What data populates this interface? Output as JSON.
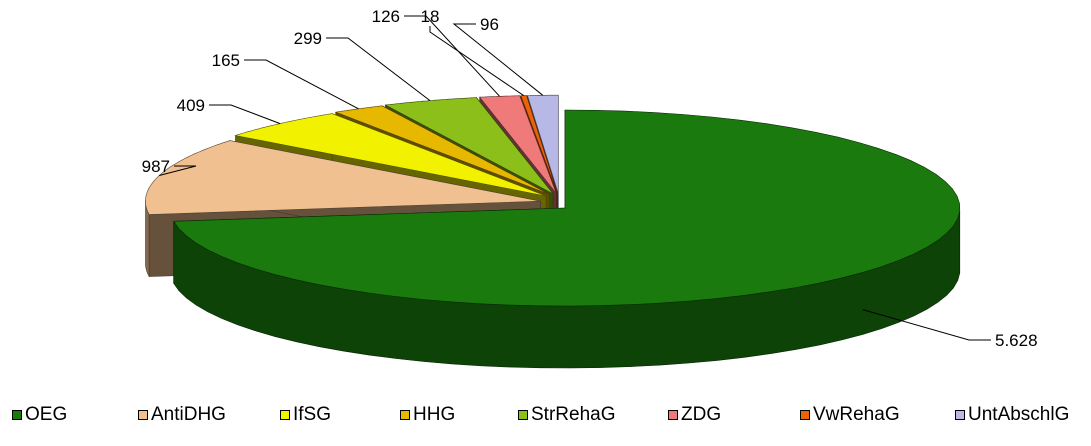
{
  "chart_data": {
    "type": "pie",
    "style": "3d-exploded",
    "title": "",
    "legend_position": "bottom",
    "slices": [
      {
        "name": "OEG",
        "value": 5628,
        "label": "5.628",
        "color": "#1a7a0e"
      },
      {
        "name": "AntiDHG",
        "value": 987,
        "label": "987",
        "color": "#f0c090"
      },
      {
        "name": "IfSG",
        "value": 409,
        "label": "409",
        "color": "#f2f200"
      },
      {
        "name": "HHG",
        "value": 165,
        "label": "165",
        "color": "#e6b800"
      },
      {
        "name": "StrRehaG",
        "value": 299,
        "label": "299",
        "color": "#8cbf1a"
      },
      {
        "name": "ZDG",
        "value": 126,
        "label": "126",
        "color": "#f07a7a"
      },
      {
        "name": "VwRehaG",
        "value": 18,
        "label": "18",
        "color": "#e8640a"
      },
      {
        "name": "UntAbschlG",
        "value": 96,
        "label": "96",
        "color": "#b8b8e6"
      }
    ]
  }
}
